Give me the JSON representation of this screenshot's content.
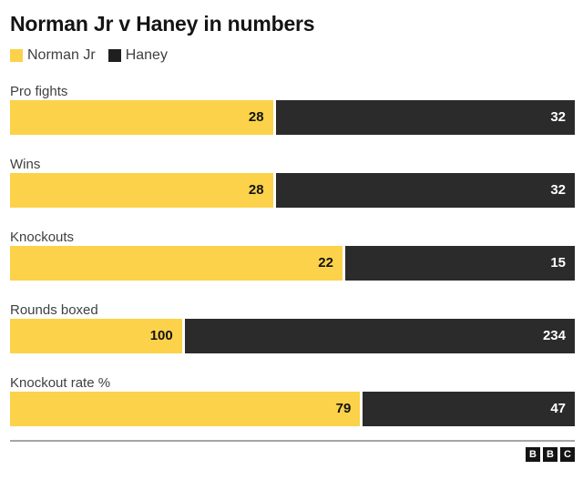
{
  "header": {
    "title": "Norman Jr v Haney in numbers"
  },
  "legend": [
    {
      "label": "Norman Jr",
      "color": "#FBD249"
    },
    {
      "label": "Haney",
      "color": "#1f1f1f"
    }
  ],
  "chart_data": {
    "type": "bar",
    "orientation": "horizontal",
    "title": "Norman Jr v Haney in numbers",
    "categories": [
      "Pro fights",
      "Wins",
      "Knockouts",
      "Rounds boxed",
      "Knockout rate %"
    ],
    "series": [
      {
        "name": "Norman Jr",
        "color": "#FBD249",
        "values": [
          28,
          28,
          22,
          100,
          79
        ]
      },
      {
        "name": "Haney",
        "color": "#2B2B2B",
        "values": [
          32,
          32,
          15,
          234,
          47
        ]
      }
    ],
    "value_labels": "inside-end",
    "legend_position": "top",
    "bar_pairing": "proportional-split"
  },
  "footer": {
    "logo_letters": [
      "B",
      "B",
      "C"
    ]
  },
  "colors": {
    "norman_bar": "#FBD249",
    "haney_bar": "#2B2B2B",
    "title_text": "#141414",
    "label_text": "#404040",
    "value_on_norman": "#141414",
    "value_on_haney": "#ffffff",
    "divider": "#a6a6a6",
    "background": "#ffffff"
  }
}
